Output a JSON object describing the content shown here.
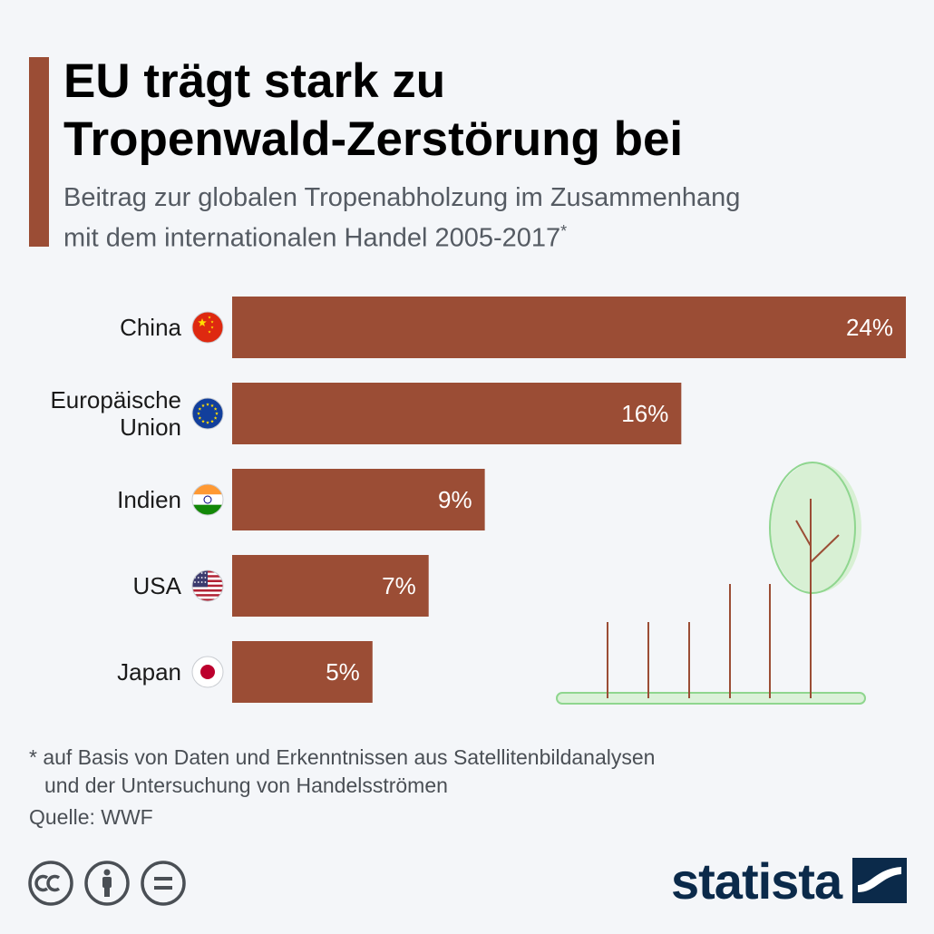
{
  "header": {
    "title_line1": "EU trägt stark zu",
    "title_line2": "Tropenwald-Zerstörung bei",
    "subtitle_line1": "Beitrag zur globalen Tropenabholzung im Zusammenhang",
    "subtitle_line2": "mit dem internationalen Handel 2005-2017",
    "subtitle_mark": "*"
  },
  "chart_data": {
    "type": "bar",
    "orientation": "horizontal",
    "categories": [
      "China",
      "Europäische Union",
      "Indien",
      "USA",
      "Japan"
    ],
    "category_lines": [
      [
        "China"
      ],
      [
        "Europäische",
        "Union"
      ],
      [
        "Indien"
      ],
      [
        "USA"
      ],
      [
        "Japan"
      ]
    ],
    "values": [
      24,
      16,
      9,
      7,
      5
    ],
    "value_labels": [
      "24%",
      "16%",
      "9%",
      "7%",
      "5%"
    ],
    "unit": "%",
    "xlim": [
      0,
      24
    ],
    "grid": false,
    "bar_color": "#9b4d35",
    "flag_icons": [
      "china-flag-icon",
      "eu-flag-icon",
      "india-flag-icon",
      "usa-flag-icon",
      "japan-flag-icon"
    ]
  },
  "footer": {
    "footnote_line1": "* auf Basis von Daten und Erkenntnissen aus Satellitenbildanalysen",
    "footnote_line2": "und der Untersuchung von Handelsströmen",
    "source": "Quelle: WWF",
    "license_icons": [
      "cc-icon",
      "attribution-icon",
      "no-derivatives-icon"
    ],
    "brand": "statista"
  },
  "colors": {
    "accent": "#9b4d35",
    "background": "#f4f6f9",
    "illustration_green": "#8fd68f",
    "brand_navy": "#0b2a4a"
  }
}
